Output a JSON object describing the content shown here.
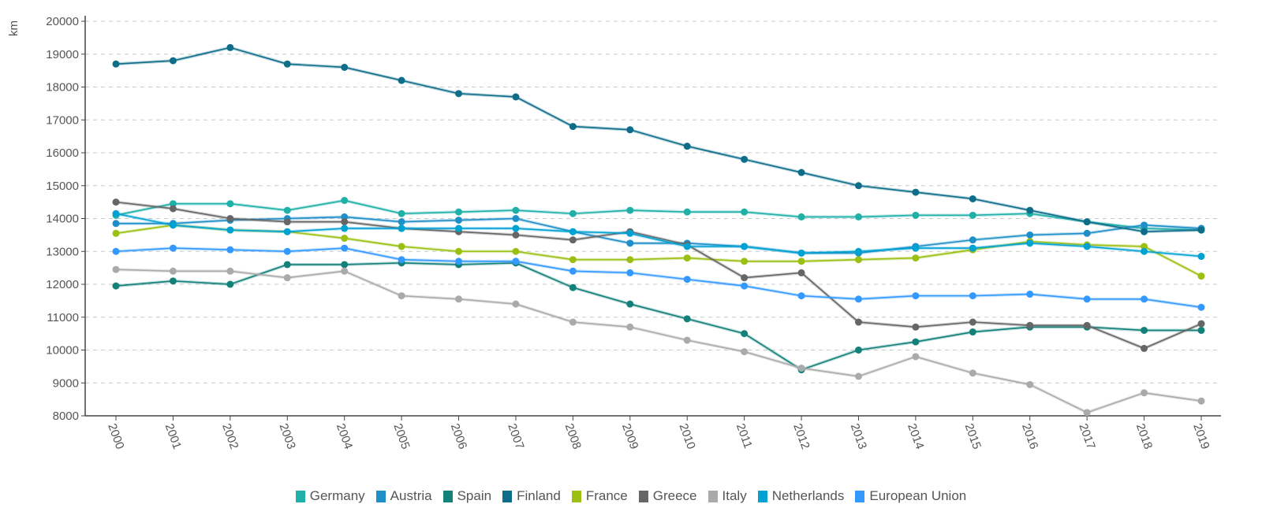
{
  "chart_data": {
    "type": "line",
    "title": "",
    "xlabel": "",
    "ylabel": "km",
    "ylim": [
      8000,
      20000
    ],
    "yticks": [
      8000,
      9000,
      10000,
      11000,
      12000,
      13000,
      14000,
      15000,
      16000,
      17000,
      18000,
      19000,
      20000
    ],
    "grid": true,
    "legend_position": "bottom",
    "x": [
      "2000",
      "2001",
      "2002",
      "2003",
      "2004",
      "2005",
      "2006",
      "2007",
      "2008",
      "2009",
      "2010",
      "2011",
      "2012",
      "2013",
      "2014",
      "2015",
      "2016",
      "2017",
      "2018",
      "2019"
    ],
    "series": [
      {
        "name": "Germany",
        "color": "#1fb0a8",
        "values": [
          14100,
          14450,
          14450,
          14250,
          14550,
          14150,
          14200,
          14250,
          14150,
          14250,
          14200,
          14200,
          14050,
          14050,
          14100,
          14100,
          14150,
          13900,
          13700,
          13650
        ]
      },
      {
        "name": "Austria",
        "color": "#1e8fc8",
        "values": [
          13850,
          13850,
          13950,
          14000,
          14050,
          13900,
          13950,
          14000,
          13600,
          13250,
          13250,
          13150,
          12950,
          12950,
          13150,
          13350,
          13500,
          13550,
          13800,
          13700
        ]
      },
      {
        "name": "Spain",
        "color": "#13807a",
        "values": [
          11950,
          12100,
          12000,
          12600,
          12600,
          12650,
          12600,
          12650,
          11900,
          11400,
          10950,
          10500,
          9400,
          10000,
          10250,
          10550,
          10700,
          10700,
          10600,
          10600
        ]
      },
      {
        "name": "Finland",
        "color": "#0e6e8a",
        "values": [
          18700,
          18800,
          19200,
          18700,
          18600,
          18200,
          17800,
          17700,
          16800,
          16700,
          16200,
          15800,
          15400,
          15000,
          14800,
          14600,
          14250,
          13900,
          13600,
          13650
        ]
      },
      {
        "name": "France",
        "color": "#9bbf12",
        "values": [
          13550,
          13800,
          13650,
          13600,
          13400,
          13150,
          13000,
          13000,
          12750,
          12750,
          12800,
          12700,
          12700,
          12750,
          12800,
          13050,
          13300,
          13200,
          13150,
          12250
        ]
      },
      {
        "name": "Greece",
        "color": "#666666",
        "values": [
          14500,
          14300,
          14000,
          13900,
          13900,
          13700,
          13600,
          13500,
          13350,
          13600,
          13200,
          12200,
          12350,
          10850,
          10700,
          10850,
          10750,
          10750,
          10050,
          10800
        ]
      },
      {
        "name": "Italy",
        "color": "#aaaaaa",
        "values": [
          12450,
          12400,
          12400,
          12200,
          12400,
          11650,
          11550,
          11400,
          10850,
          10700,
          10300,
          9950,
          9450,
          9200,
          9800,
          9300,
          8950,
          8100,
          8700,
          8450
        ]
      },
      {
        "name": "Netherlands",
        "color": "#00a2d4",
        "values": [
          14150,
          13800,
          13650,
          13600,
          13700,
          13700,
          13700,
          13700,
          13600,
          13550,
          13150,
          13150,
          12950,
          13000,
          13100,
          13100,
          13250,
          13150,
          13000,
          12850
        ]
      },
      {
        "name": "European Union",
        "color": "#3399ff",
        "values": [
          13000,
          13100,
          13050,
          13000,
          13100,
          12750,
          12700,
          12700,
          12400,
          12350,
          12150,
          11950,
          11650,
          11550,
          11650,
          11650,
          11700,
          11550,
          11550,
          11300
        ]
      }
    ]
  }
}
